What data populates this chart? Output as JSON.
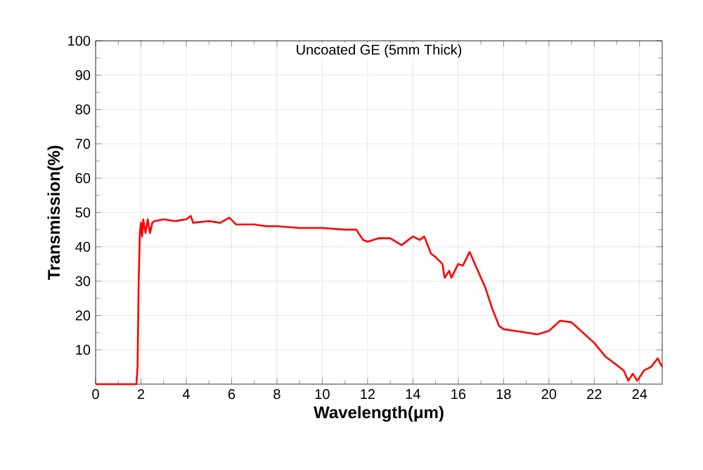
{
  "chart_data": {
    "type": "line",
    "title": "Uncoated GE (5mm Thick)",
    "xlabel": "Wavelength(μm)",
    "ylabel": "Transmission(%)",
    "xlim": [
      0,
      25
    ],
    "ylim": [
      0,
      100
    ],
    "xticks": [
      0,
      2,
      4,
      6,
      8,
      10,
      12,
      14,
      16,
      18,
      20,
      22,
      24
    ],
    "yticks": [
      10,
      20,
      30,
      40,
      50,
      60,
      70,
      80,
      90,
      100
    ],
    "grid": true,
    "series": [
      {
        "color": "#ff0000",
        "x": [
          0,
          1.8,
          1.85,
          1.9,
          1.95,
          2.0,
          2.05,
          2.1,
          2.2,
          2.3,
          2.4,
          2.5,
          2.6,
          3,
          3.5,
          4,
          4.2,
          4.3,
          5,
          5.5,
          5.9,
          6.2,
          7,
          7.5,
          8,
          9,
          10,
          11,
          11.5,
          11.8,
          12,
          12.5,
          13,
          13.5,
          14,
          14.3,
          14.5,
          14.8,
          15,
          15.3,
          15.4,
          15.6,
          15.7,
          16,
          16.2,
          16.5,
          16.8,
          17.2,
          17.5,
          17.8,
          18,
          18.5,
          19,
          19.5,
          20,
          20.5,
          21,
          21.5,
          22,
          22.5,
          23,
          23.3,
          23.5,
          23.7,
          23.9,
          24.2,
          24.5,
          24.8,
          25
        ],
        "values": [
          0,
          0,
          5,
          30,
          44,
          47,
          43,
          48,
          44,
          48,
          44,
          47,
          47.5,
          48,
          47.5,
          48,
          49,
          47,
          47.5,
          47,
          48.5,
          46.5,
          46.5,
          46,
          46,
          45.5,
          45.5,
          45,
          45,
          42,
          41.5,
          42.5,
          42.5,
          40.5,
          43,
          42,
          43,
          38,
          37,
          35,
          31,
          33,
          31,
          35,
          34.5,
          38.5,
          34,
          28,
          22,
          17,
          16,
          15.5,
          15,
          14.5,
          15.5,
          18.5,
          18,
          15,
          12,
          8,
          5.5,
          4,
          1,
          3,
          1,
          4,
          5,
          7.5,
          5
        ]
      }
    ]
  }
}
